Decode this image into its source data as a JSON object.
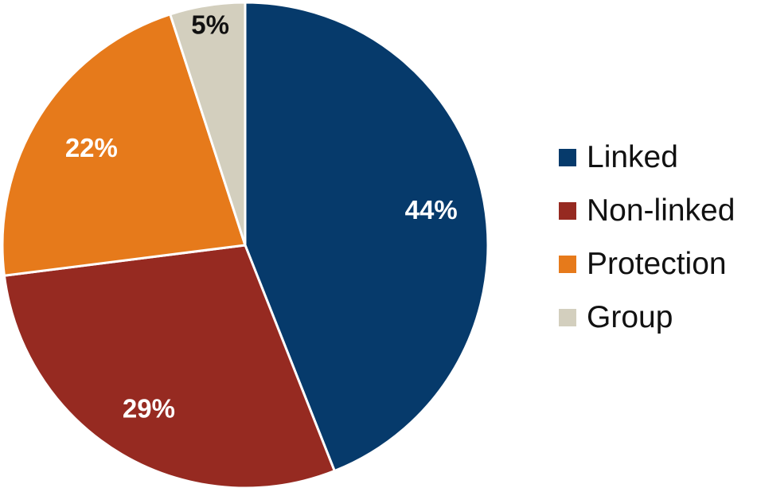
{
  "chart_data": {
    "type": "pie",
    "title": "",
    "start_angle_deg": 0,
    "direction": "clockwise",
    "legend_position": "right",
    "slices": [
      {
        "name": "Linked",
        "value": 44,
        "label": "44%",
        "color": "#063A6B",
        "label_color": "#FFFFFF"
      },
      {
        "name": "Non-linked",
        "value": 29,
        "label": "29%",
        "color": "#962A21",
        "label_color": "#FFFFFF"
      },
      {
        "name": "Protection",
        "value": 22,
        "label": "22%",
        "color": "#E67A1B",
        "label_color": "#FFFFFF"
      },
      {
        "name": "Group",
        "value": 5,
        "label": "5%",
        "color": "#D3CFBE",
        "label_color": "#111111"
      }
    ]
  }
}
